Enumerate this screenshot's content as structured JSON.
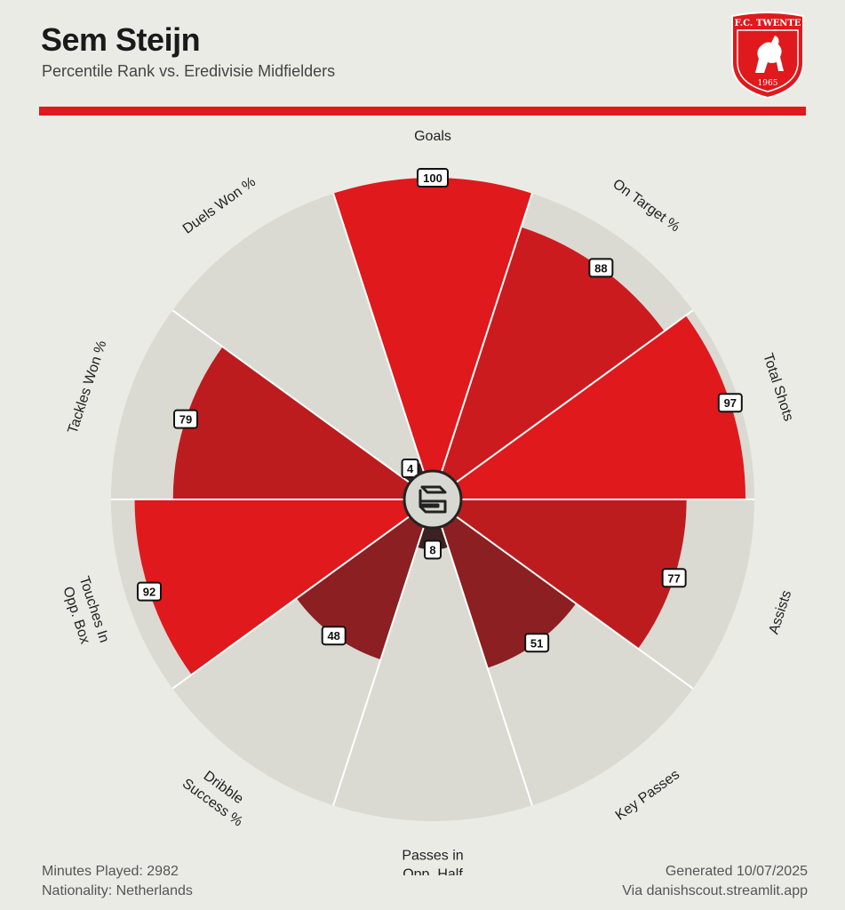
{
  "header": {
    "title": "Sem Steijn",
    "subtitle": "Percentile Rank vs. Eredivisie Midfielders"
  },
  "badge": {
    "club": "F.C. TWENTE",
    "year": "1965",
    "color": "#e0191c"
  },
  "colors": {
    "accent": "#e0191c",
    "background": "#ebebe6",
    "track": "#dadad3"
  },
  "chart_data": {
    "type": "polar-bar",
    "title": "Percentile Rank vs. Eredivisie Midfielders",
    "rmax": 100,
    "categories": [
      "Goals",
      "On Target %",
      "Total Shots",
      "Assists",
      "Key Passes",
      "Passes in\nOpp. Half",
      "Dribble\nSuccess %",
      "Touches In\nOpp. Box",
      "Tackles Won %",
      "Duels Won %"
    ],
    "values": [
      100,
      88,
      97,
      77,
      51,
      8,
      48,
      92,
      79,
      4
    ],
    "colors": [
      "#e0191c",
      "#cc1b1e",
      "#e0191c",
      "#bd1c1f",
      "#8c1f21",
      "#3b2222",
      "#8c1f21",
      "#e0191c",
      "#bd1c1f",
      "#3b2222"
    ]
  },
  "footer": {
    "minutes": "Minutes Played: 2982",
    "nationality": "Nationality: Netherlands",
    "generated": "Generated 10/07/2025",
    "via": "Via danishscout.streamlit.app"
  }
}
